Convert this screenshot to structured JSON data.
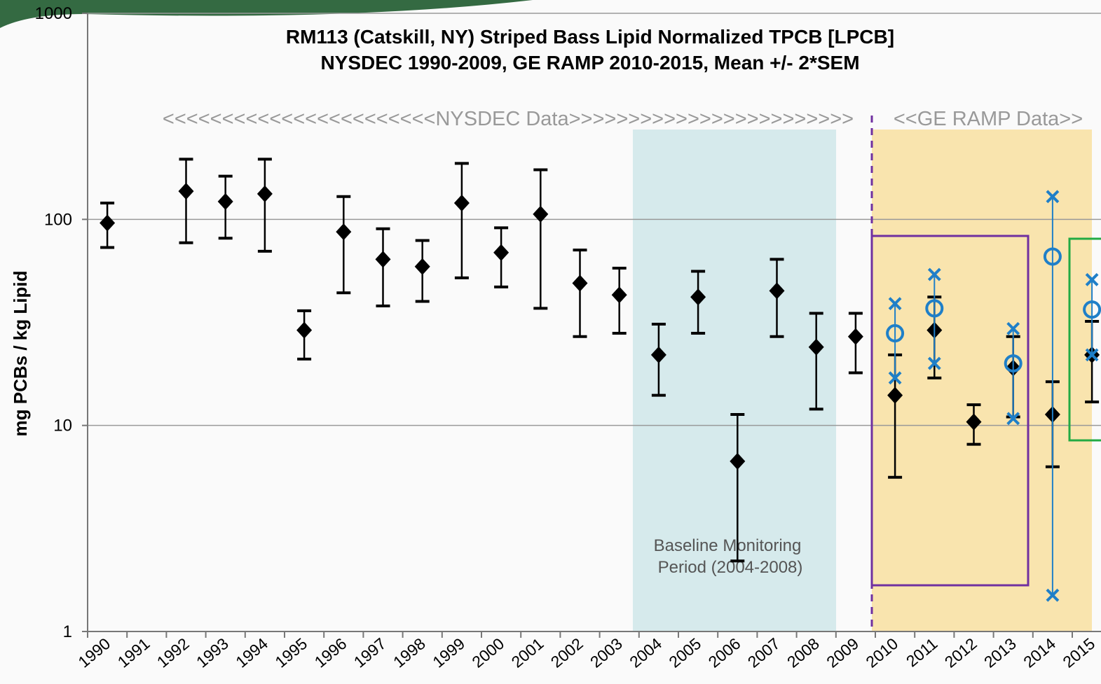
{
  "chart_data": {
    "type": "errorbar",
    "title": "RM113 (Catskill, NY) Striped Bass Lipid Normalized TPCB [LPCB]",
    "subtitle": "NYSDEC 1990-2009, GE RAMP 2010-2015, Mean +/- 2*SEM",
    "y_label": "mg PCBs / kg Lipid",
    "annotations": [
      "<<<<<<<<<<<<<<<<<<<<<<<NYSDEC Data>>>>>>>>>>>>>>>>>>>>>>>>",
      "<<GE RAMP Data>>",
      "Baseline Monitoring",
      "Period (2004-2008)"
    ],
    "categories": [
      "1990",
      "1991",
      "1992",
      "1993",
      "1994",
      "1995",
      "1996",
      "1997",
      "1998",
      "1999",
      "2000",
      "2001",
      "2002",
      "2003",
      "2004",
      "2005",
      "2006",
      "2007",
      "2008",
      "2009",
      "2010",
      "2011",
      "2012",
      "2013",
      "2014",
      "2015"
    ],
    "log_scale": true,
    "grid": true,
    "ylim": [
      1,
      1000
    ],
    "yticks": [
      1,
      10,
      100,
      1000
    ],
    "series": [
      {
        "color": "#000000",
        "marker": "diamond",
        "values": [
          96,
          null,
          137,
          122,
          133,
          29,
          87,
          64,
          59,
          120,
          69,
          106,
          49,
          43,
          22,
          42,
          6.7,
          45,
          24,
          27,
          14,
          29,
          10.4,
          19,
          11.3,
          22
        ],
        "low": [
          73,
          null,
          77,
          81,
          70,
          21,
          44,
          38,
          40,
          52,
          47,
          37,
          27,
          28,
          14,
          28,
          2.2,
          27,
          12,
          18,
          5.6,
          17,
          8.1,
          11,
          6.3,
          13
        ],
        "high": [
          120,
          null,
          196,
          162,
          196,
          36,
          129,
          90,
          79,
          187,
          91,
          174,
          71,
          58,
          31,
          56,
          11.3,
          64,
          35,
          35,
          22,
          42,
          12.6,
          27,
          16.3,
          32
        ]
      },
      {
        "color": "#1f7fc8",
        "marker": "circle",
        "values": [
          null,
          null,
          null,
          null,
          null,
          null,
          null,
          null,
          null,
          null,
          null,
          null,
          null,
          null,
          null,
          null,
          null,
          null,
          null,
          null,
          28,
          37,
          null,
          20,
          66,
          36.5
        ],
        "low": [
          null,
          null,
          null,
          null,
          null,
          null,
          null,
          null,
          null,
          null,
          null,
          null,
          null,
          null,
          null,
          null,
          null,
          null,
          null,
          null,
          17,
          20,
          null,
          10.8,
          1.5,
          22
        ],
        "high": [
          null,
          null,
          null,
          null,
          null,
          null,
          null,
          null,
          null,
          null,
          null,
          null,
          null,
          null,
          null,
          null,
          null,
          null,
          null,
          null,
          39,
          54,
          null,
          29.5,
          129,
          51
        ]
      }
    ]
  }
}
